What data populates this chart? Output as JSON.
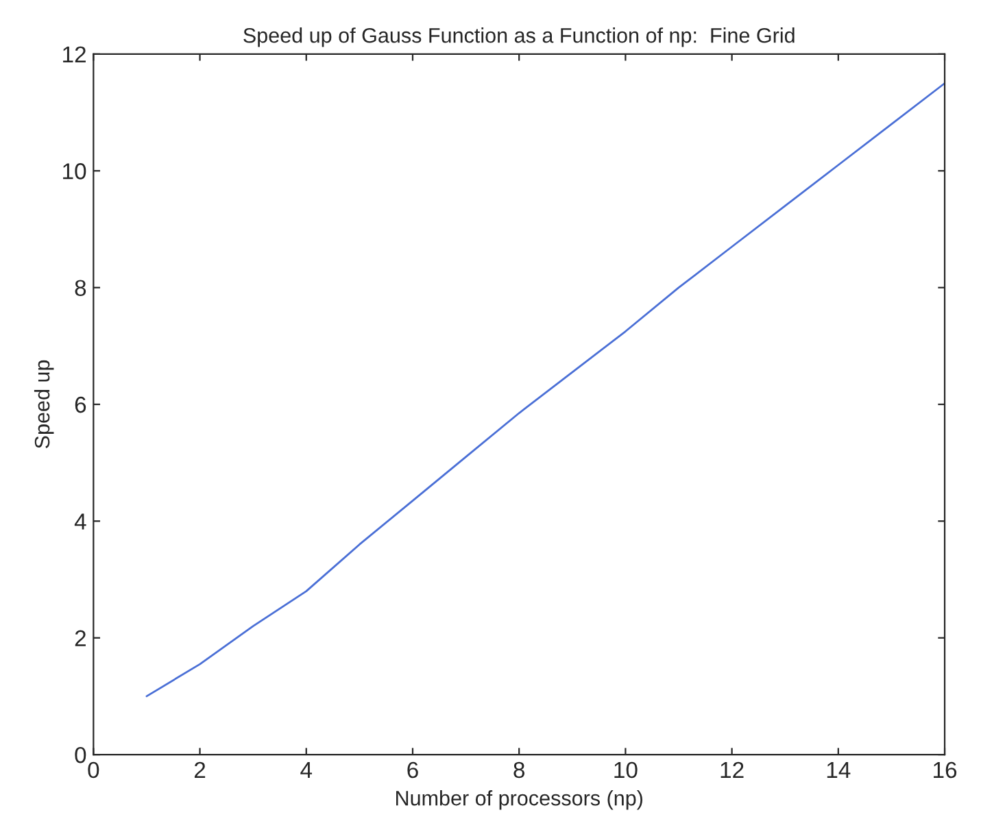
{
  "chart_data": {
    "type": "line",
    "title": "Speed up of Gauss Function as a Function of np:  Fine Grid",
    "xlabel": "Number of processors (np)",
    "ylabel": "Speed up",
    "x": [
      1,
      2,
      3,
      4,
      5,
      6,
      7,
      8,
      9,
      10,
      11,
      12,
      13,
      14,
      15,
      16
    ],
    "series": [
      {
        "color": "#4a6fd6",
        "values": [
          1.0,
          1.55,
          2.2,
          2.8,
          3.6,
          4.35,
          5.1,
          5.85,
          6.55,
          7.25,
          8.0,
          8.7,
          9.4,
          10.1,
          10.8,
          11.5
        ]
      }
    ],
    "xlim": [
      0,
      16
    ],
    "xticks": [
      0,
      2,
      4,
      6,
      8,
      10,
      12,
      14,
      16
    ],
    "ylim": [
      0,
      12
    ],
    "yticks": [
      0,
      2,
      4,
      6,
      8,
      10,
      12
    ],
    "grid": false,
    "marker": "none",
    "line_style": "solid"
  }
}
